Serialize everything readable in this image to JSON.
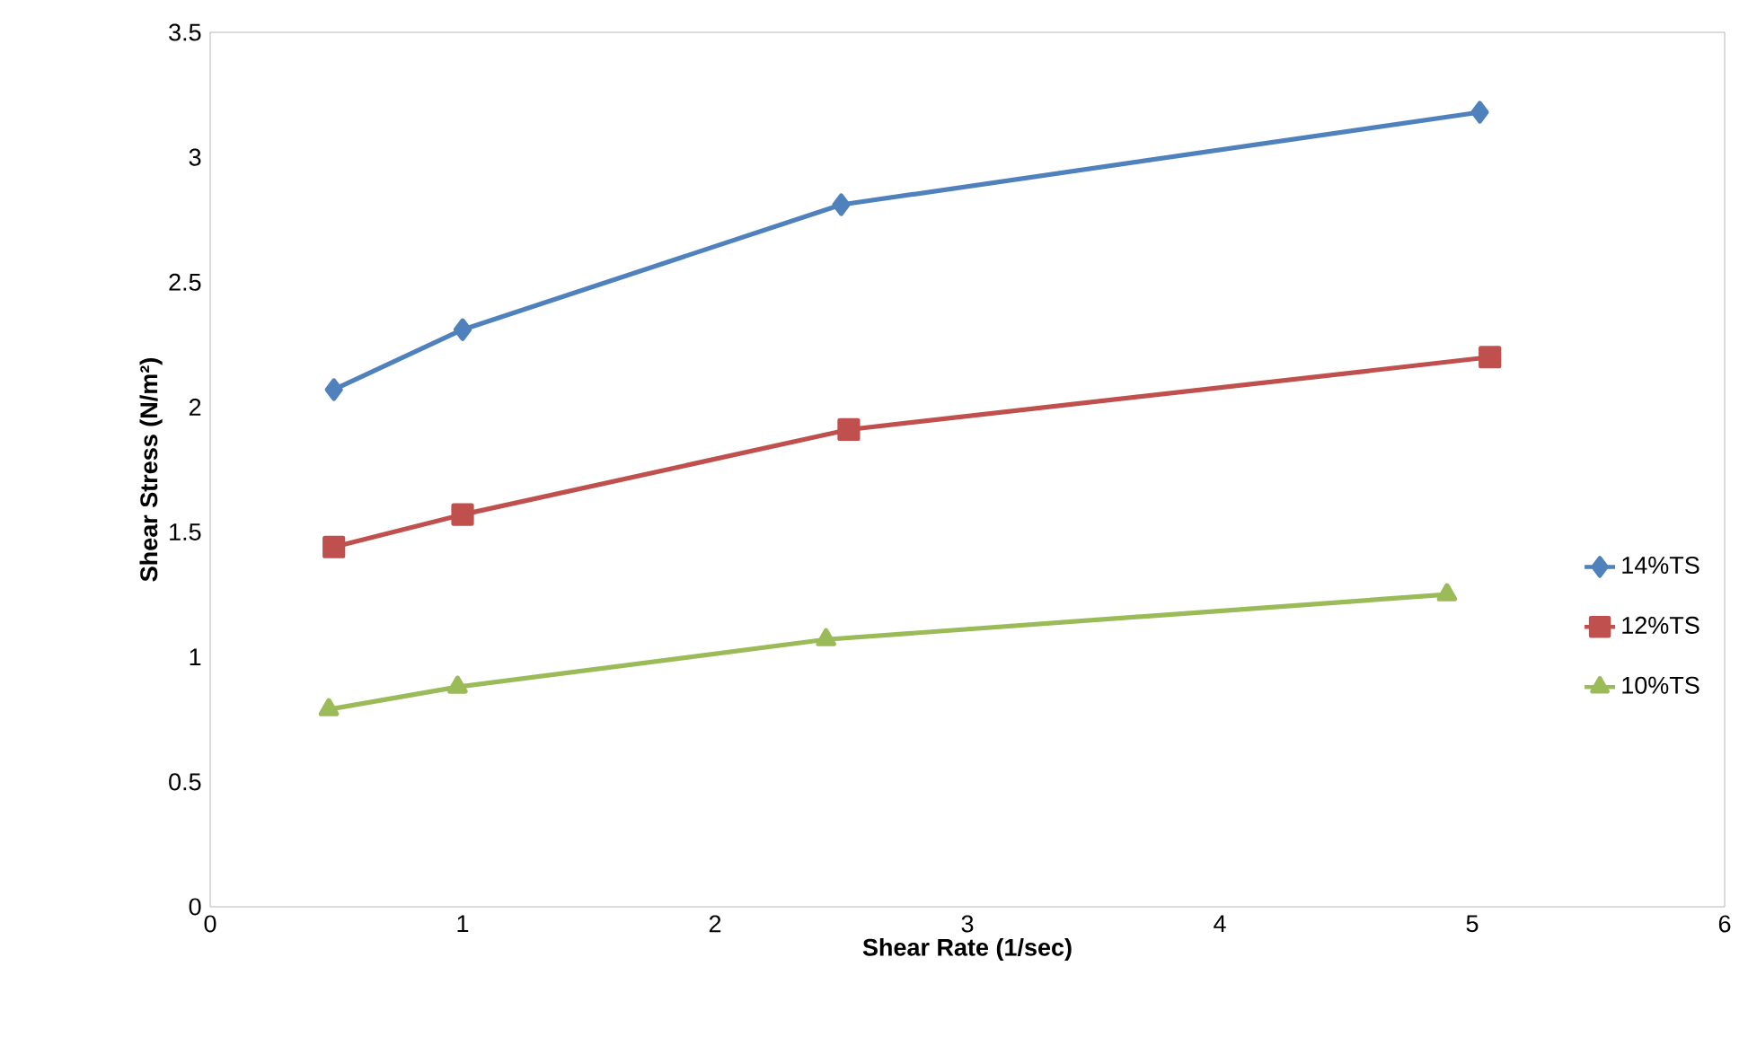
{
  "chart_data": {
    "type": "line",
    "xlabel": "Shear Rate (1/sec)",
    "ylabel": "Shear Stress (N/m²)",
    "xlim": [
      0,
      6
    ],
    "ylim": [
      0,
      3.5
    ],
    "xticks": [
      0,
      1,
      2,
      3,
      4,
      5,
      6
    ],
    "yticks": [
      0,
      0.5,
      1,
      1.5,
      2,
      2.5,
      3,
      3.5
    ],
    "grid": false,
    "legend": "right",
    "line_style": "solid",
    "series": [
      {
        "name": "14%TS",
        "color": "#4f81bd",
        "marker": "diamond",
        "x": [
          0.49,
          1.0,
          2.5,
          5.03
        ],
        "values": [
          2.07,
          2.31,
          2.81,
          3.18
        ]
      },
      {
        "name": "12%TS",
        "color": "#c0504d",
        "marker": "square",
        "x": [
          0.49,
          1.0,
          2.53,
          5.07
        ],
        "values": [
          1.44,
          1.57,
          1.91,
          2.2
        ]
      },
      {
        "name": "10%TS",
        "color": "#9bbb59",
        "marker": "triangle",
        "x": [
          0.47,
          0.98,
          2.44,
          4.9
        ],
        "values": [
          0.79,
          0.88,
          1.07,
          1.25
        ]
      }
    ]
  }
}
